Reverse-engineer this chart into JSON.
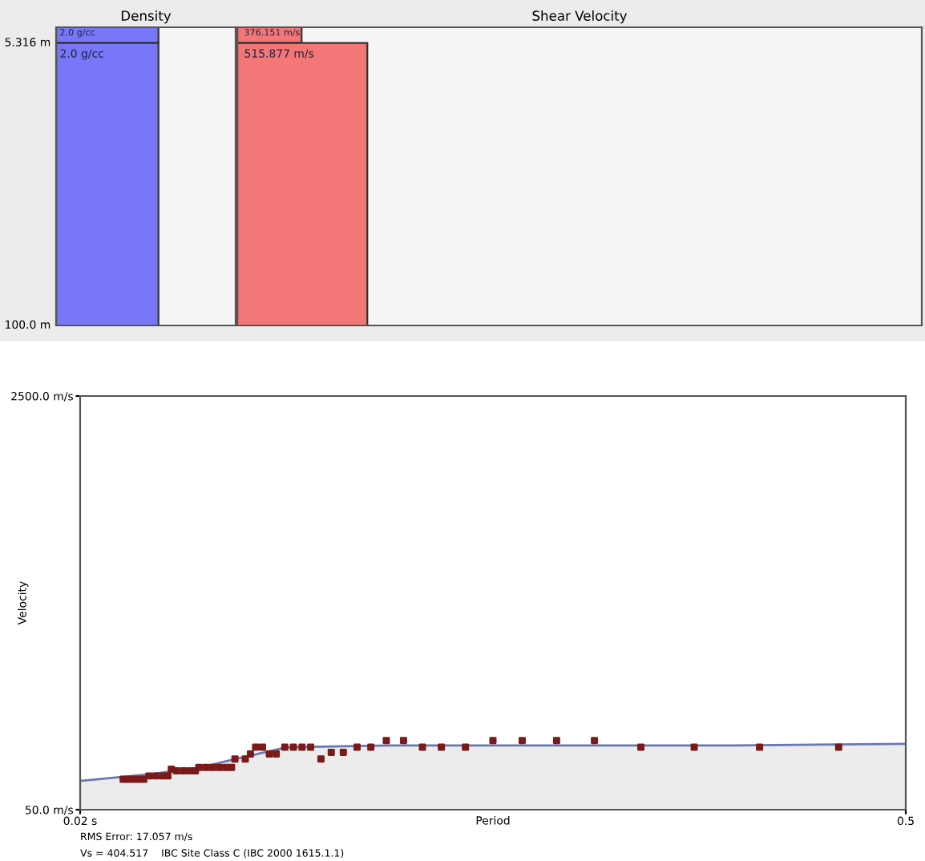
{
  "chart_data": [
    {
      "type": "other",
      "title": "Density",
      "color": "#7777f7",
      "annotations": [
        "5.316 m",
        "100.0 m",
        "2.0 g/cc",
        "2.0 g/cc"
      ]
    },
    {
      "type": "other",
      "title": "Shear Velocity",
      "color": "#f47777",
      "annotations": [
        "376.151 m/s",
        "515.877 m/s"
      ]
    },
    {
      "type": "scatter",
      "xlabel": "Period",
      "ylabel": "Velocity",
      "xlim": [
        0.02,
        0.5
      ],
      "ylim": [
        50,
        2500
      ],
      "xticks": [
        {
          "value": 0.02,
          "label": "0.02 s"
        },
        {
          "value": 0.5,
          "label": "0.5"
        }
      ],
      "yticks": [
        {
          "value": 50,
          "label": "50.0 m/s"
        },
        {
          "value": 2500,
          "label": "2500.0 m/s"
        }
      ],
      "grid": false,
      "series": [
        {
          "type": "area",
          "color": "#6a78b0",
          "x": [
            0.02,
            0.06,
            0.09,
            0.11,
            0.14,
            0.2,
            0.4,
            0.5
          ],
          "values": [
            220,
            260,
            300,
            350,
            420,
            430,
            430,
            440
          ]
        },
        {
          "type": "scatter",
          "color": "#7a1a1a",
          "marker": "square",
          "x": [
            0.045,
            0.048,
            0.051,
            0.054,
            0.057,
            0.06,
            0.064,
            0.068,
            0.071,
            0.073,
            0.076,
            0.08,
            0.084,
            0.087,
            0.089,
            0.093,
            0.097,
            0.101,
            0.105,
            0.108,
            0.11,
            0.116,
            0.119,
            0.122,
            0.126,
            0.13,
            0.134,
            0.139,
            0.144,
            0.149,
            0.154,
            0.16,
            0.166,
            0.173,
            0.181,
            0.189,
            0.198,
            0.208,
            0.219,
            0.23,
            0.244,
            0.26,
            0.277,
            0.297,
            0.319,
            0.346,
            0.377,
            0.415,
            0.461
          ],
          "values": [
            230,
            230,
            230,
            230,
            230,
            250,
            250,
            250,
            250,
            290,
            280,
            280,
            280,
            280,
            300,
            300,
            300,
            300,
            300,
            300,
            350,
            350,
            380,
            420,
            420,
            380,
            380,
            420,
            420,
            420,
            420,
            350,
            390,
            390,
            420,
            420,
            460,
            460,
            420,
            420,
            420,
            460,
            460,
            460,
            460,
            420,
            420,
            420,
            420
          ]
        }
      ],
      "annotations": [
        "RMS Error: 17.057 m/s",
        "Vs = 404.517    IBC Site Class C (IBC 2000 1615.1.1)"
      ]
    }
  ]
}
